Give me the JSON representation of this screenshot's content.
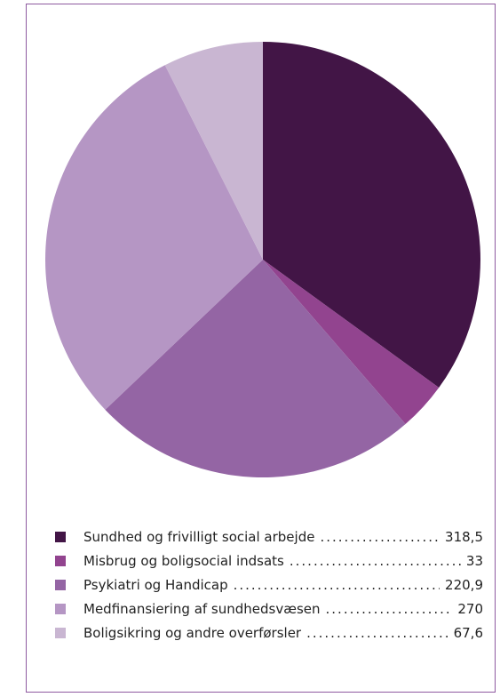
{
  "chart_data": {
    "type": "pie",
    "slices": [
      {
        "label": "Sundhed og frivilligt social arbejde",
        "value": 318.5,
        "value_text": "318,5",
        "color": "#421546"
      },
      {
        "label": "Misbrug og boligsocial indsats",
        "value": 33,
        "value_text": "33",
        "color": "#92448f"
      },
      {
        "label": "Psykiatri og Handicap",
        "value": 220.9,
        "value_text": "220,9",
        "color": "#9465a4"
      },
      {
        "label": "Medfinansiering af sundhedsvæsen",
        "value": 270,
        "value_text": "270",
        "color": "#b596c4"
      },
      {
        "label": "Boligsikring og andre overførsler",
        "value": 67.6,
        "value_text": "67,6",
        "color": "#c9b6d2"
      }
    ],
    "start_angle": "12 o'clock",
    "direction": "clockwise",
    "legend_position": "bottom"
  }
}
